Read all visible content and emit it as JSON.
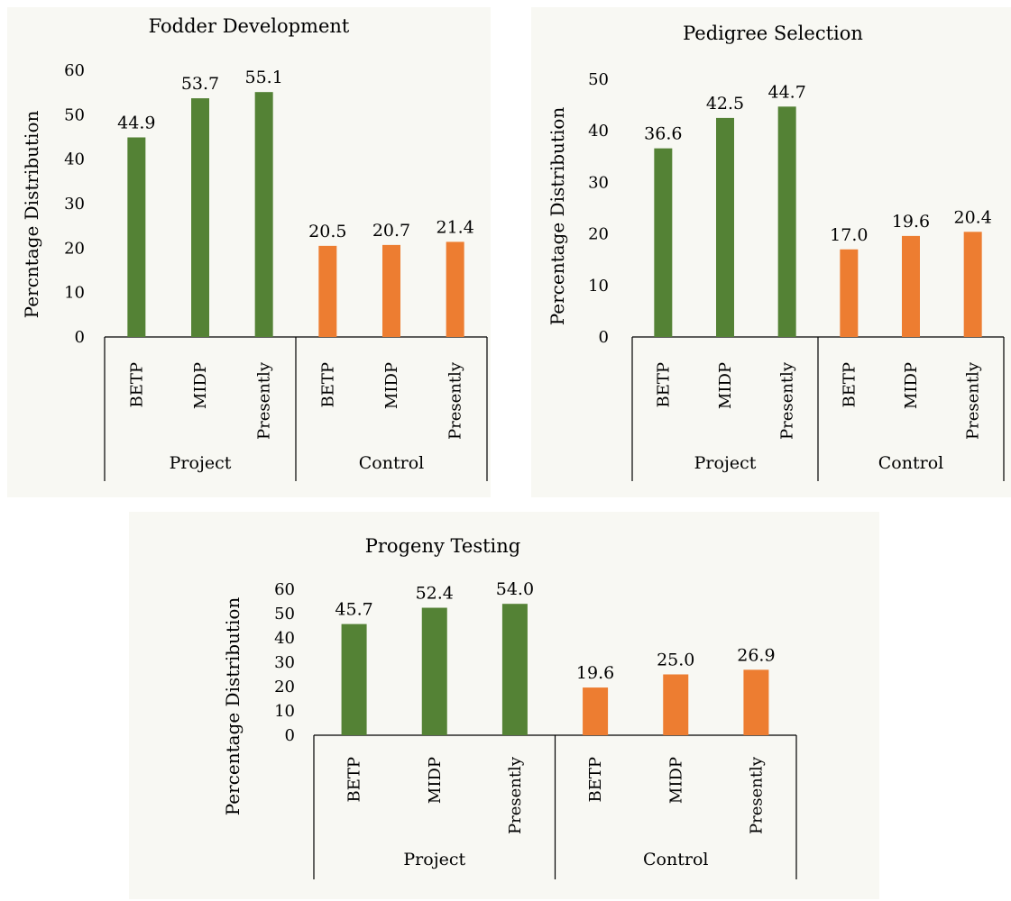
{
  "colors": {
    "project": "#548235",
    "control": "#ED7D31",
    "axis": "#000000",
    "panel_bg": "#f8f8f3"
  },
  "chart_data": [
    {
      "type": "bar",
      "title": "Fodder Development",
      "ylabel": "Percntage Distribution",
      "xlabel": "",
      "ylim": [
        0,
        60
      ],
      "yticks": [
        0,
        10,
        20,
        30,
        40,
        50,
        60
      ],
      "groups": [
        {
          "label": "Project",
          "categories": [
            "BETP",
            "MIDP",
            "Presently"
          ],
          "values": [
            44.9,
            53.7,
            55.1
          ],
          "value_labels": [
            "44.9",
            "53.7",
            "55.1"
          ],
          "color": "#548235"
        },
        {
          "label": "Control",
          "categories": [
            "BETP",
            "MIDP",
            "Presently"
          ],
          "values": [
            20.5,
            20.7,
            21.4
          ],
          "value_labels": [
            "20.5",
            "20.7",
            "21.4"
          ],
          "color": "#ED7D31"
        }
      ],
      "grid": false,
      "legend": "none"
    },
    {
      "type": "bar",
      "title": "Pedigree Selection",
      "ylabel": "Percentage Distribution",
      "xlabel": "",
      "ylim": [
        0,
        50
      ],
      "yticks": [
        0,
        10,
        20,
        30,
        40,
        50
      ],
      "groups": [
        {
          "label": "Project",
          "categories": [
            "BETP",
            "MIDP",
            "Presently"
          ],
          "values": [
            36.6,
            42.5,
            44.7
          ],
          "value_labels": [
            "36.6",
            "42.5",
            "44.7"
          ],
          "color": "#548235"
        },
        {
          "label": "Control",
          "categories": [
            "BETP",
            "MIDP",
            "Presently"
          ],
          "values": [
            17.0,
            19.6,
            20.4
          ],
          "value_labels": [
            "17.0",
            "19.6",
            "20.4"
          ],
          "color": "#ED7D31"
        }
      ],
      "grid": false,
      "legend": "none"
    },
    {
      "type": "bar",
      "title": "Progeny Testing",
      "ylabel": "Percentage Distribution",
      "xlabel": "",
      "ylim": [
        0,
        60
      ],
      "yticks": [
        0,
        10,
        20,
        30,
        40,
        50,
        60
      ],
      "groups": [
        {
          "label": "Project",
          "categories": [
            "BETP",
            "MIDP",
            "Presently"
          ],
          "values": [
            45.7,
            52.4,
            54.0
          ],
          "value_labels": [
            "45.7",
            "52.4",
            "54.0"
          ],
          "color": "#548235"
        },
        {
          "label": "Control",
          "categories": [
            "BETP",
            "MIDP",
            "Presently"
          ],
          "values": [
            19.6,
            25.0,
            26.9
          ],
          "value_labels": [
            "19.6",
            "25.0",
            "26.9"
          ],
          "color": "#ED7D31"
        }
      ],
      "grid": false,
      "legend": "none"
    }
  ]
}
